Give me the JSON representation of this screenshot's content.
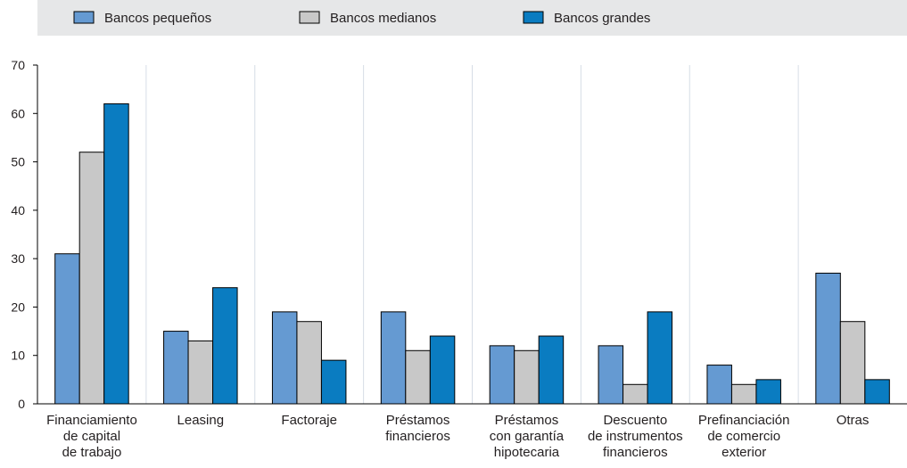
{
  "chart_data": {
    "type": "bar",
    "categories": [
      "Financiamiento\nde capital\nde trabajo",
      "Leasing",
      "Factoraje",
      "Préstamos\nfinancieros",
      "Préstamos\ncon garantía\nhipotecaria",
      "Descuento\nde instrumentos\nfinancieros",
      "Prefinanciación\nde comercio\nexterior",
      "Otras"
    ],
    "series": [
      {
        "name": "Bancos pequeños",
        "color": "#659ad2",
        "values": [
          31,
          15,
          19,
          19,
          12,
          12,
          8,
          27
        ]
      },
      {
        "name": "Bancos medianos",
        "color": "#c8c8c8",
        "values": [
          52,
          13,
          17,
          11,
          11,
          4,
          4,
          17
        ]
      },
      {
        "name": "Bancos grandes",
        "color": "#0a7cc1",
        "values": [
          62,
          24,
          9,
          14,
          14,
          19,
          5,
          5
        ]
      }
    ],
    "ylim": [
      0,
      70
    ],
    "yticks": [
      0,
      10,
      20,
      30,
      40,
      50,
      60,
      70
    ],
    "grid": false
  }
}
